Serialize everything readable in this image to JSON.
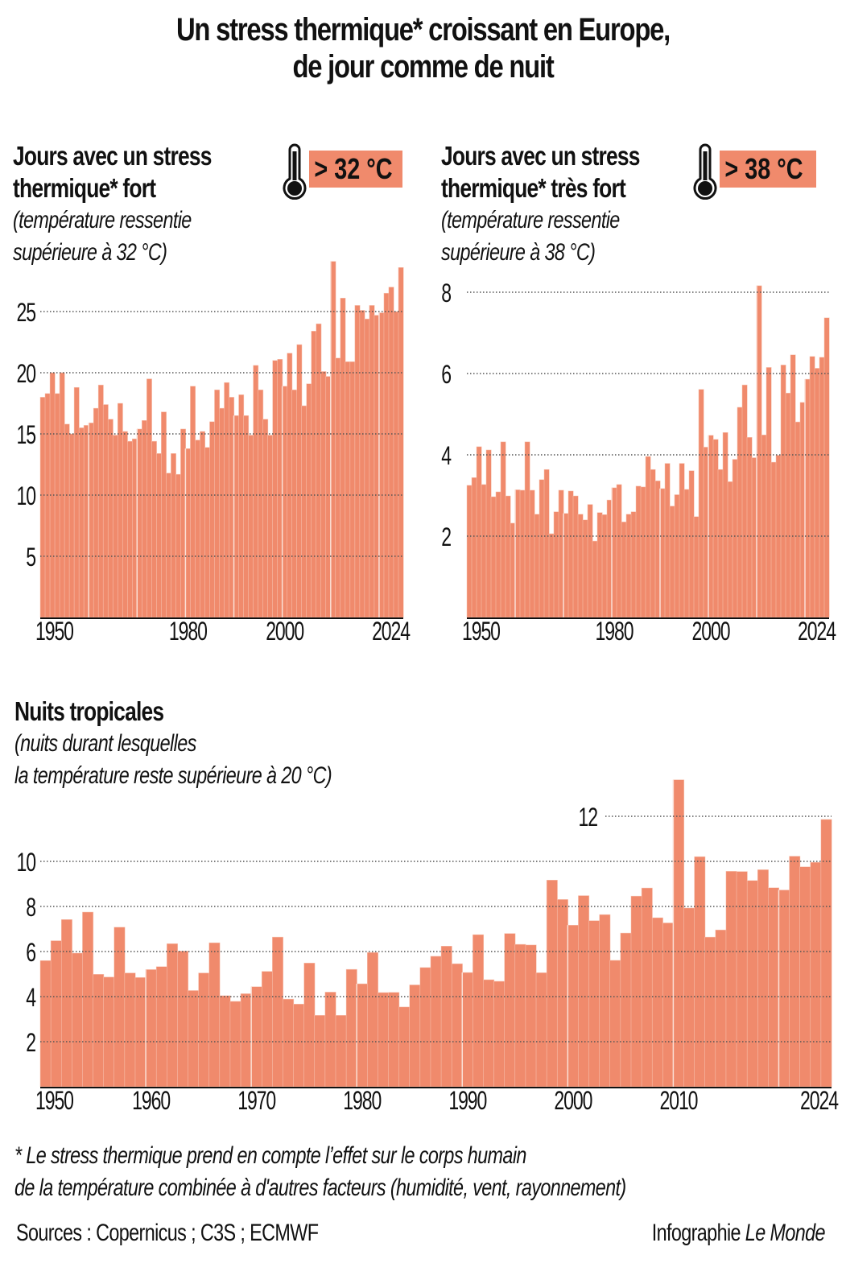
{
  "title": {
    "line1": "Un stress thermique* croissant en Europe,",
    "line2": "de jour comme de nuit"
  },
  "colors": {
    "bar": "#f08a6c",
    "bar_edge": "#f8c7b6",
    "grid": "#555555",
    "text": "#111111"
  },
  "panels": {
    "strong": {
      "heading1": "Jours avec un stress",
      "heading2": "thermique* fort",
      "sub1": "(température ressentie",
      "sub2": "supérieure à 32 °C)",
      "badge": "> 32 °C",
      "icon": "thermometer-icon"
    },
    "very_strong": {
      "heading1": "Jours avec un stress",
      "heading2": "thermique* très fort",
      "sub1": "(température ressentie",
      "sub2": "supérieure à 38 °C)",
      "badge": "> 38 °C",
      "icon": "thermometer-icon"
    },
    "nights": {
      "heading": "Nuits tropicales",
      "sub1": "(nuits durant lesquelles",
      "sub2": "la température reste supérieure à 20 °C)"
    }
  },
  "chart_data": [
    {
      "type": "bar",
      "title": "Jours avec un stress thermique* fort",
      "xlabel": "",
      "ylabel": "",
      "x_start": 1950,
      "x_end": 2024,
      "ylim": [
        0,
        29.5
      ],
      "yticks": [
        5,
        10,
        15,
        20,
        25
      ],
      "ytick_labels": [
        "5",
        "10",
        "15",
        "20",
        "25"
      ],
      "xtick_labels": [
        "1950",
        "1980",
        "2000",
        "2024"
      ],
      "grid": true,
      "values": [
        18.0,
        18.3,
        20.0,
        18.3,
        20.0,
        15.8,
        15.0,
        18.8,
        15.5,
        15.7,
        15.9,
        17.1,
        19.0,
        17.4,
        16.2,
        14.9,
        17.5,
        15.2,
        14.4,
        14.6,
        15.4,
        16.1,
        19.5,
        14.4,
        13.4,
        16.8,
        11.8,
        13.4,
        11.7,
        15.4,
        13.8,
        18.9,
        14.5,
        15.2,
        13.9,
        16.0,
        18.6,
        17.1,
        19.2,
        18.0,
        16.5,
        18.2,
        16.5,
        14.9,
        20.6,
        18.6,
        16.2,
        14.9,
        21.0,
        21.1,
        18.9,
        21.6,
        18.6,
        22.3,
        17.3,
        19.1,
        23.4,
        24.0,
        20.1,
        19.7,
        29.1,
        21.2,
        26.1,
        20.9,
        20.9,
        25.5,
        25.1,
        24.4,
        25.5,
        24.7,
        24.9,
        26.5,
        27.0,
        25.0,
        28.6
      ]
    },
    {
      "type": "bar",
      "title": "Jours avec un stress thermique* très fort",
      "xlabel": "",
      "ylabel": "",
      "x_start": 1950,
      "x_end": 2024,
      "ylim": [
        0,
        8.4
      ],
      "yticks": [
        2,
        4,
        6,
        8
      ],
      "ytick_labels": [
        "2",
        "4",
        "6",
        "8"
      ],
      "xtick_labels": [
        "1950",
        "1980",
        "2000",
        "2024"
      ],
      "grid": true,
      "values": [
        3.25,
        3.44,
        4.2,
        3.27,
        4.12,
        2.97,
        3.09,
        4.32,
        2.99,
        2.32,
        3.14,
        3.13,
        4.32,
        3.13,
        2.54,
        3.39,
        3.64,
        2.06,
        2.6,
        3.13,
        2.56,
        3.11,
        2.99,
        2.54,
        2.4,
        2.78,
        1.88,
        2.58,
        2.53,
        2.89,
        3.19,
        3.27,
        2.35,
        2.54,
        2.6,
        3.23,
        3.21,
        3.96,
        3.64,
        3.36,
        3.17,
        3.79,
        2.74,
        3.02,
        3.79,
        3.15,
        3.61,
        2.48,
        5.61,
        4.19,
        4.48,
        4.38,
        3.64,
        4.55,
        3.34,
        3.89,
        5.17,
        5.72,
        4.43,
        3.93,
        8.16,
        4.49,
        6.15,
        3.82,
        3.99,
        6.21,
        5.52,
        6.46,
        4.81,
        5.29,
        5.86,
        6.42,
        6.13,
        6.4,
        7.37
      ]
    },
    {
      "type": "bar",
      "title": "Nuits tropicales",
      "xlabel": "",
      "ylabel": "",
      "x_start": 1950,
      "x_end": 2024,
      "ylim": [
        0,
        14
      ],
      "yticks": [
        2,
        4,
        6,
        8,
        10,
        12
      ],
      "ytick_labels": [
        "2",
        "4",
        "6",
        "8",
        "10",
        "12"
      ],
      "xtick_labels": [
        "1950",
        "1960",
        "1970",
        "1980",
        "1990",
        "2000",
        "2010",
        "2024"
      ],
      "grid": true,
      "values": [
        5.6,
        6.48,
        7.42,
        5.93,
        7.75,
        4.99,
        4.87,
        7.08,
        5.05,
        4.85,
        5.2,
        5.33,
        6.35,
        6.02,
        4.27,
        5.05,
        6.39,
        4.04,
        3.79,
        4.13,
        4.44,
        5.12,
        6.64,
        3.89,
        3.67,
        5.49,
        3.17,
        4.2,
        3.17,
        5.21,
        4.57,
        5.96,
        4.18,
        4.19,
        3.54,
        4.52,
        5.29,
        5.79,
        6.24,
        5.46,
        5.07,
        6.75,
        4.75,
        4.68,
        6.8,
        6.32,
        6.29,
        5.06,
        9.17,
        8.31,
        7.17,
        8.48,
        7.37,
        7.64,
        5.61,
        6.82,
        8.46,
        8.82,
        7.5,
        7.27,
        13.62,
        7.93,
        10.21,
        6.64,
        6.96,
        9.56,
        9.55,
        9.15,
        9.63,
        8.83,
        8.73,
        10.23,
        9.76,
        9.96,
        11.86
      ]
    }
  ],
  "footnote": {
    "line1": "* Le stress thermique prend en compte l’effet sur le corps humain",
    "line2": "de la température combinée à d'autres facteurs (humidité, vent, rayonnement)"
  },
  "sources": "Sources : Copernicus ; C3S ; ECMWF",
  "credit_prefix": "Infographie ",
  "credit_brand": "Le Monde"
}
